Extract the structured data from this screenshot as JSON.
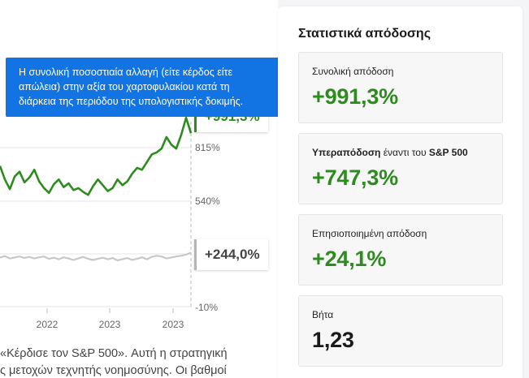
{
  "chart_data": {
    "type": "line",
    "x_ticks": [
      "2022",
      "2023",
      "2023"
    ],
    "y_ticks": [
      "815%",
      "540%",
      "-10%"
    ],
    "series": [
      {
        "color": "#2e8b1f",
        "end_label": "+991,3%",
        "values": [
          720,
          650,
          600,
          665,
          690,
          635,
          660,
          700,
          640,
          605,
          580,
          625,
          650,
          610,
          630,
          595,
          605,
          585,
          570,
          615,
          650,
          620,
          590,
          605,
          650,
          620,
          640,
          680,
          710,
          700,
          740,
          780,
          790,
          810,
          870,
          830,
          810,
          880,
          970,
          890
        ]
      },
      {
        "color": "#c8c8c8",
        "end_label": "+244,0%",
        "values": [
          245,
          252,
          240,
          245,
          250,
          243,
          248,
          240,
          246,
          250,
          238,
          244,
          236,
          246,
          240,
          232,
          240,
          248,
          238,
          232,
          238,
          244,
          236,
          242,
          230,
          236,
          242,
          232,
          238,
          246,
          236,
          248,
          254,
          250,
          240,
          245,
          250,
          254,
          260,
          270
        ]
      }
    ]
  },
  "body_text": {
    "line1": "«Κέρδισε τον S&P 500». Αυτή η στρατηγική",
    "line2": "ς μετοχών τεχνητής νοημοσύνης. Οι βαθμοί"
  },
  "tooltip": {
    "line1": "Η συνολική ποσοστιαία αλλαγή (είτε κέρδος είτε",
    "line2": "απώλεια) στην αξία του χαρτοφυλακίου κατά τη",
    "line3": "διάρκεια της περιόδου της υπολογιστικής δοκιμής."
  },
  "panel": {
    "title": "Στατιστικά απόδοσης",
    "cards": [
      {
        "label": "Συνολική απόδοση",
        "value": "+991,3%"
      },
      {
        "label_strong": "Υπεραπόδοση",
        "label_mid": " έναντι του ",
        "label_strong2": "S&P 500",
        "value": "+747,3%"
      },
      {
        "label": "Επησιοποιημένη απόδοση",
        "value": "+24,1%"
      },
      {
        "label": "Βήτα",
        "value": "1,23"
      }
    ]
  },
  "colors": {
    "accent_blue": "#1273e3",
    "positive_green": "#2e8b1f",
    "benchmark_gray": "#c8c8c8"
  }
}
